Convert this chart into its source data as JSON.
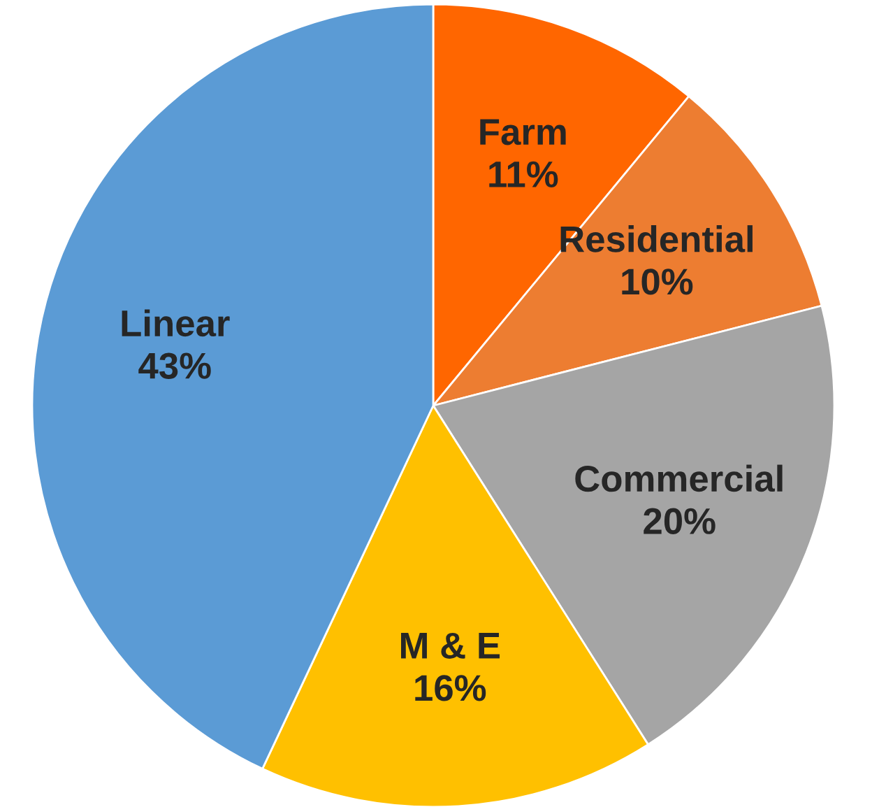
{
  "chart_data": {
    "type": "pie",
    "categories": [
      "Farm",
      "Residential",
      "Commercial",
      "M & E",
      "Linear"
    ],
    "values": [
      11,
      10,
      20,
      16,
      43
    ],
    "value_labels": [
      "11%",
      "10%",
      "20%",
      "16%",
      "43%"
    ],
    "colors": [
      "#ff6600",
      "#ed7d31",
      "#a5a5a5",
      "#ffc000",
      "#5b9bd5"
    ],
    "legend": false
  }
}
